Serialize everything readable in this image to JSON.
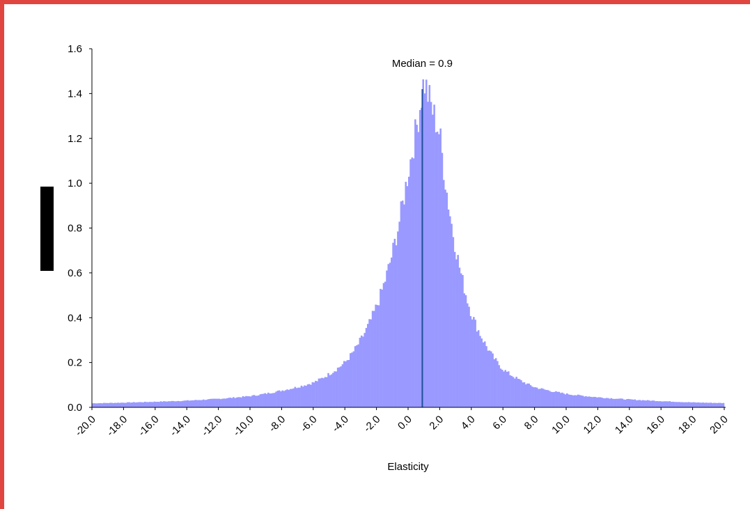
{
  "colors": {
    "frame": "#e0463f",
    "bars": "#9999ff",
    "median_line": "#1f4e9c",
    "axis": "#000000",
    "ylabel_block": "#000000"
  },
  "chart_data": {
    "type": "bar",
    "xlabel": "Elasticity",
    "ylabel": "",
    "ylim": [
      0,
      1.6
    ],
    "xlim": [
      -20,
      20
    ],
    "yticks": [
      "0.0",
      "0.2",
      "0.4",
      "0.6",
      "0.8",
      "1.0",
      "1.2",
      "1.4",
      "1.6"
    ],
    "xticks": [
      "-20.0",
      "-18.0",
      "-16.0",
      "-14.0",
      "-12.0",
      "-10.0",
      "-8.0",
      "-6.0",
      "-4.0",
      "-2.0",
      "0.0",
      "2.0",
      "4.0",
      "6.0",
      "8.0",
      "10.0",
      "12.0",
      "14.0",
      "16.0",
      "18.0",
      "20.0"
    ],
    "grid": false,
    "legend": "none",
    "annotation": {
      "text": "Median = 0.9",
      "x": 0.9
    },
    "bin_width": 0.1,
    "values_at_x": [
      {
        "x": -20,
        "y": 0.018
      },
      {
        "x": -18,
        "y": 0.021
      },
      {
        "x": -16,
        "y": 0.025
      },
      {
        "x": -14,
        "y": 0.03
      },
      {
        "x": -12,
        "y": 0.038
      },
      {
        "x": -10,
        "y": 0.05
      },
      {
        "x": -8,
        "y": 0.075
      },
      {
        "x": -6,
        "y": 0.11
      },
      {
        "x": -4,
        "y": 0.2
      },
      {
        "x": -2,
        "y": 0.45
      },
      {
        "x": 0,
        "y": 1.05
      },
      {
        "x": 1,
        "y": 1.46
      },
      {
        "x": 2,
        "y": 1.22
      },
      {
        "x": 4,
        "y": 0.42
      },
      {
        "x": 6,
        "y": 0.17
      },
      {
        "x": 8,
        "y": 0.09
      },
      {
        "x": 10,
        "y": 0.06
      },
      {
        "x": 12,
        "y": 0.045
      },
      {
        "x": 14,
        "y": 0.035
      },
      {
        "x": 16,
        "y": 0.028
      },
      {
        "x": 18,
        "y": 0.022
      },
      {
        "x": 20,
        "y": 0.019
      }
    ]
  }
}
